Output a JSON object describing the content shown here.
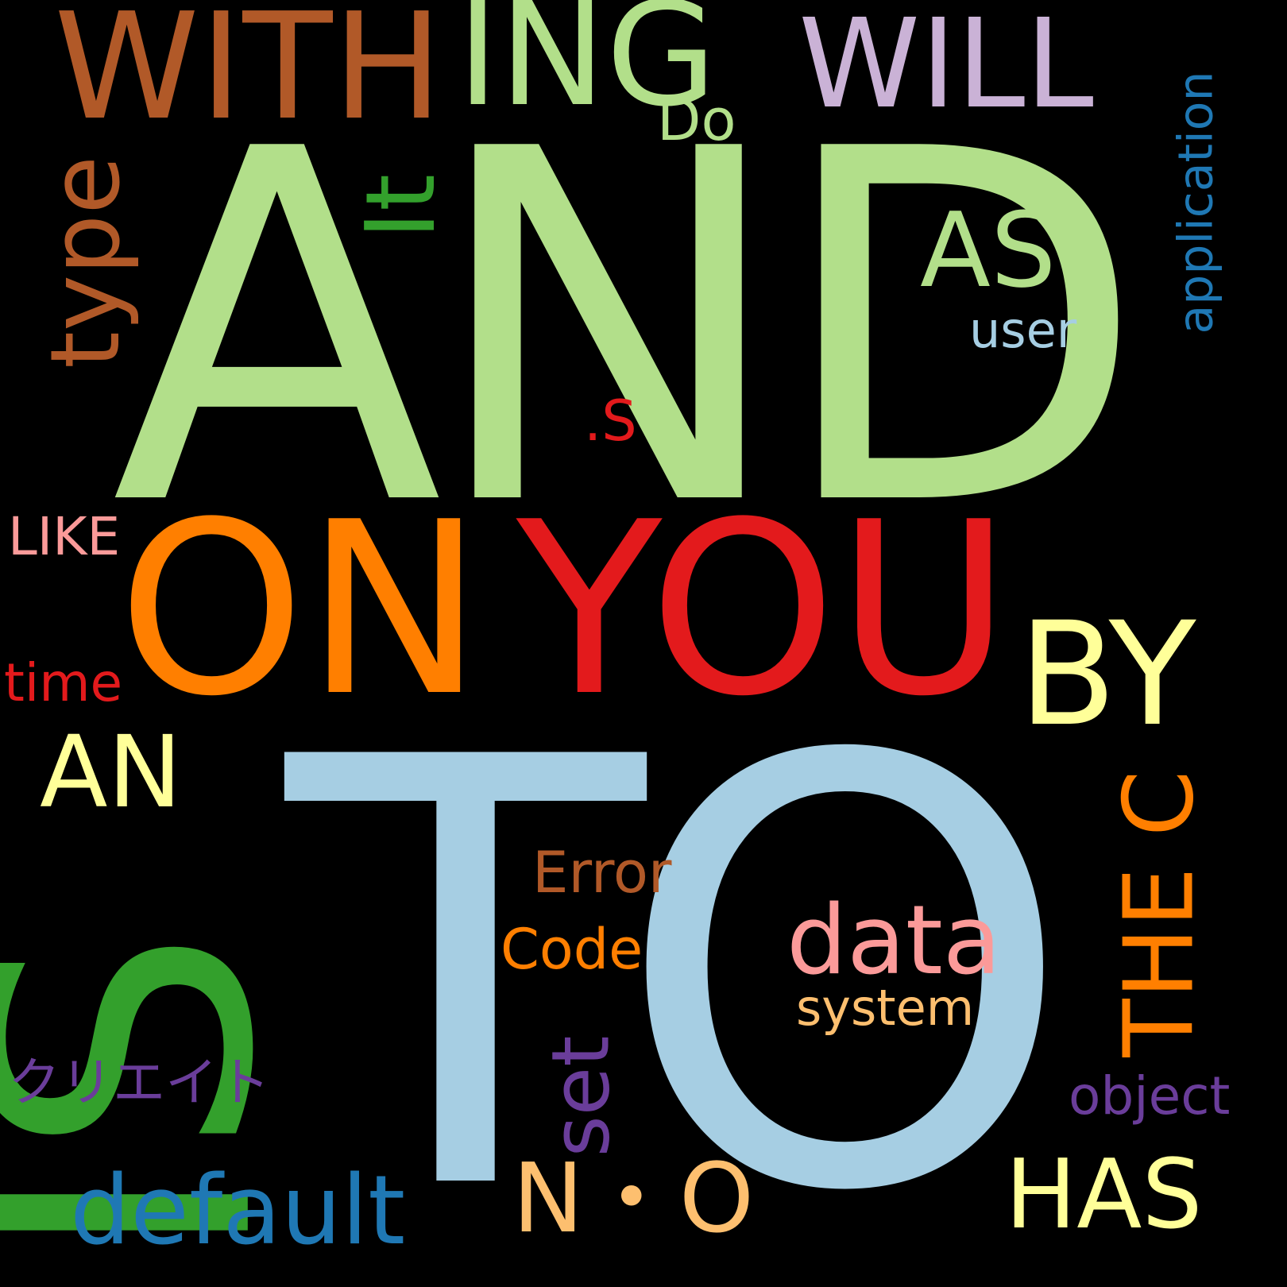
{
  "words": [
    {
      "text": "AND",
      "color": "#b2df8a"
    },
    {
      "text": "TO",
      "color": "#a6cee3"
    },
    {
      "text": "IS",
      "color": "#33a02c"
    },
    {
      "text": "ON",
      "color": "#ff7f00"
    },
    {
      "text": "YOU",
      "color": "#e31a1c"
    },
    {
      "text": "WITH",
      "color": "#b15928"
    },
    {
      "text": "ING",
      "color": "#b2df8a"
    },
    {
      "text": "WILL",
      "color": "#cab2d6"
    },
    {
      "text": "Do",
      "color": "#b2df8a"
    },
    {
      "text": "type",
      "color": "#b15928"
    },
    {
      "text": "It",
      "color": "#33a02c"
    },
    {
      "text": "AS",
      "color": "#b2df8a"
    },
    {
      "text": "user",
      "color": "#a6cee3"
    },
    {
      "text": "application",
      "color": "#1f78b4"
    },
    {
      "text": ".S",
      "color": "#e31a1c"
    },
    {
      "text": "LIKE",
      "color": "#fb9a99"
    },
    {
      "text": "BY",
      "color": "#ffff99"
    },
    {
      "text": "time",
      "color": "#e31a1c"
    },
    {
      "text": "AN",
      "color": "#ffff99"
    },
    {
      "text": "THE C",
      "color": "#ff7f00"
    },
    {
      "text": "Error",
      "color": "#b15928"
    },
    {
      "text": "Code",
      "color": "#ff7f00"
    },
    {
      "text": "data",
      "color": "#fb9a99"
    },
    {
      "text": "system",
      "color": "#fdbf6f"
    },
    {
      "text": "set",
      "color": "#6a3d9a"
    },
    {
      "text": "クリエイト",
      "color": "#6a3d9a"
    },
    {
      "text": "object",
      "color": "#6a3d9a"
    },
    {
      "text": "default",
      "color": "#1f78b4"
    },
    {
      "text": "N・O",
      "color": "#fdbf6f"
    },
    {
      "text": "HAS",
      "color": "#ffff99"
    }
  ]
}
